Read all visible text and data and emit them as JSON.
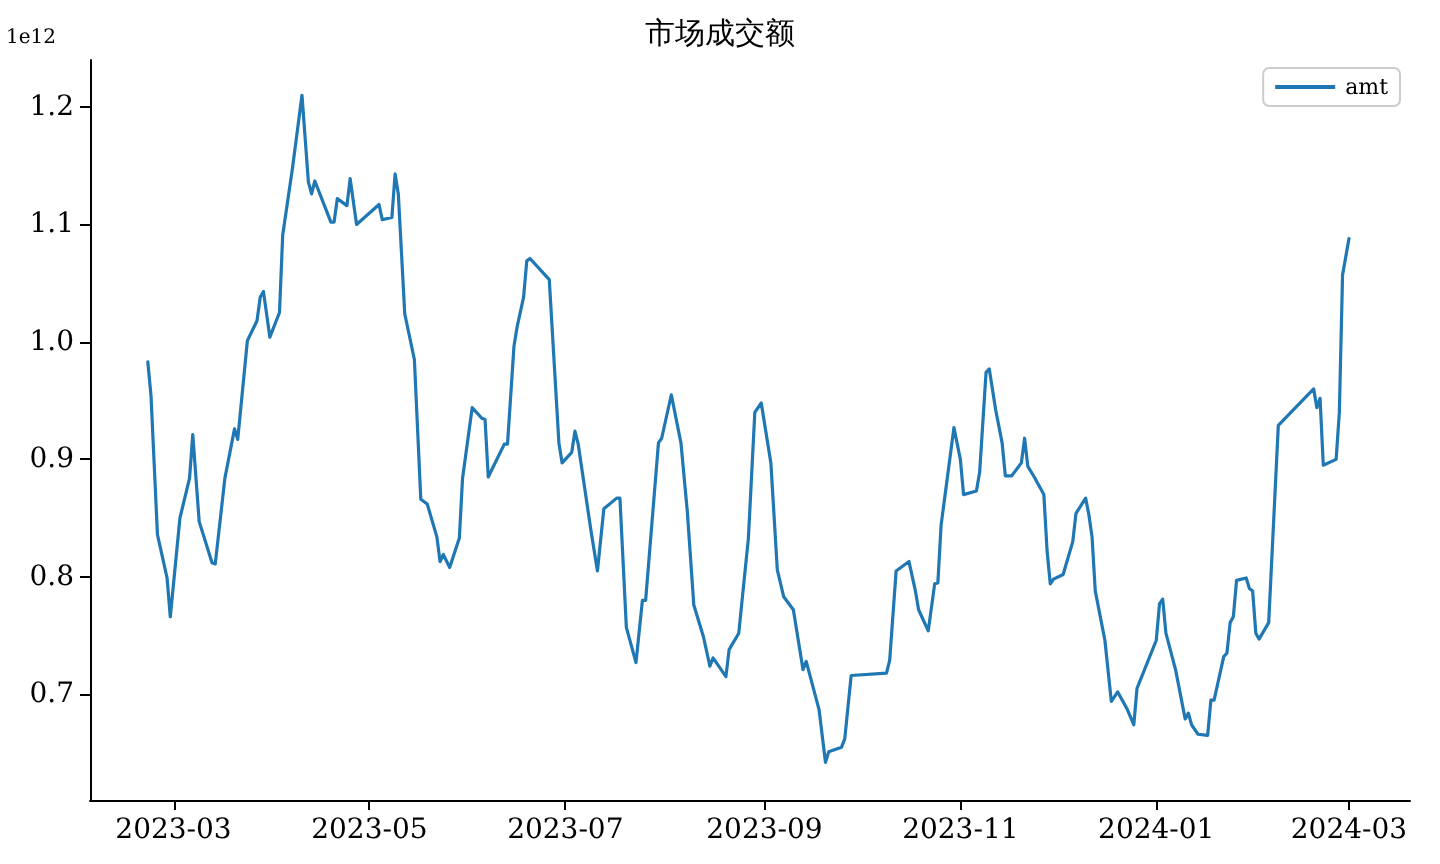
{
  "chart_data": {
    "type": "line",
    "title": "市场成交额",
    "ylabel": "1e12",
    "legend": "top right",
    "grid": false,
    "marker": "none",
    "line_style": "solid",
    "xlim": [
      "2023-02-03",
      "2024-03-20"
    ],
    "xticks": [
      "2023-03",
      "2023-05",
      "2023-07",
      "2023-09",
      "2023-11",
      "2024-01",
      "2024-03"
    ],
    "ylim": [
      0.61,
      1.24
    ],
    "yticks": [
      0.7,
      0.8,
      0.9,
      {
        "value": 1,
        "label": "1.0"
      },
      1.1,
      1.2
    ],
    "series": [
      {
        "name": "amt",
        "color": "#1f77b4",
        "x": [
          "2023-02-21",
          "2023-02-22",
          "2023-02-24",
          "2023-02-27",
          "2023-02-28",
          "2023-03-03",
          "2023-03-06",
          "2023-03-07",
          "2023-03-09",
          "2023-03-13",
          "2023-03-14",
          "2023-03-17",
          "2023-03-20",
          "2023-03-21",
          "2023-03-24",
          "2023-03-27",
          "2023-03-28",
          "2023-03-29",
          "2023-03-31",
          "2023-04-03",
          "2023-04-04",
          "2023-04-07",
          "2023-04-10",
          "2023-04-12",
          "2023-04-13",
          "2023-04-14",
          "2023-04-17",
          "2023-04-19",
          "2023-04-20",
          "2023-04-21",
          "2023-04-24",
          "2023-04-25",
          "2023-04-27",
          "2023-05-04",
          "2023-05-05",
          "2023-05-08",
          "2023-05-09",
          "2023-05-10",
          "2023-05-12",
          "2023-05-15",
          "2023-05-17",
          "2023-05-19",
          "2023-05-22",
          "2023-05-23",
          "2023-05-24",
          "2023-05-26",
          "2023-05-29",
          "2023-05-30",
          "2023-06-02",
          "2023-06-05",
          "2023-06-06",
          "2023-06-07",
          "2023-06-12",
          "2023-06-13",
          "2023-06-15",
          "2023-06-16",
          "2023-06-18",
          "2023-06-19",
          "2023-06-20",
          "2023-06-26",
          "2023-06-29",
          "2023-06-30",
          "2023-07-03",
          "2023-07-04",
          "2023-07-05",
          "2023-07-09",
          "2023-07-11",
          "2023-07-13",
          "2023-07-17",
          "2023-07-18",
          "2023-07-20",
          "2023-07-23",
          "2023-07-25",
          "2023-07-26",
          "2023-07-30",
          "2023-07-31",
          "2023-08-03",
          "2023-08-06",
          "2023-08-08",
          "2023-08-10",
          "2023-08-13",
          "2023-08-15",
          "2023-08-16",
          "2023-08-20",
          "2023-08-21",
          "2023-08-24",
          "2023-08-27",
          "2023-08-29",
          "2023-08-31",
          "2023-09-03",
          "2023-09-05",
          "2023-09-07",
          "2023-09-10",
          "2023-09-13",
          "2023-09-14",
          "2023-09-18",
          "2023-09-20",
          "2023-09-21",
          "2023-09-25",
          "2023-09-26",
          "2023-09-28",
          "2023-10-09",
          "2023-10-10",
          "2023-10-12",
          "2023-10-16",
          "2023-10-18",
          "2023-10-19",
          "2023-10-22",
          "2023-10-24",
          "2023-10-25",
          "2023-10-26",
          "2023-10-30",
          "2023-11-01",
          "2023-11-02",
          "2023-11-06",
          "2023-11-07",
          "2023-11-09",
          "2023-11-10",
          "2023-11-12",
          "2023-11-14",
          "2023-11-15",
          "2023-11-17",
          "2023-11-20",
          "2023-11-21",
          "2023-11-22",
          "2023-11-24",
          "2023-11-27",
          "2023-11-28",
          "2023-11-29",
          "2023-11-30",
          "2023-12-03",
          "2023-12-06",
          "2023-12-07",
          "2023-12-10",
          "2023-12-11",
          "2023-12-12",
          "2023-12-13",
          "2023-12-16",
          "2023-12-18",
          "2023-12-20",
          "2023-12-23",
          "2023-12-25",
          "2023-12-26",
          "2024-01-01",
          "2024-01-02",
          "2024-01-03",
          "2024-01-04",
          "2024-01-07",
          "2024-01-10",
          "2024-01-11",
          "2024-01-12",
          "2024-01-14",
          "2024-01-17",
          "2024-01-18",
          "2024-01-19",
          "2024-01-22",
          "2024-01-23",
          "2024-01-24",
          "2024-01-25",
          "2024-01-26",
          "2024-01-29",
          "2024-01-30",
          "2024-01-31",
          "2024-02-01",
          "2024-02-02",
          "2024-02-05",
          "2024-02-08",
          "2024-02-19",
          "2024-02-20",
          "2024-02-21",
          "2024-02-22",
          "2024-02-26",
          "2024-02-27",
          "2024-02-28",
          "2024-03-01"
        ],
        "values": [
          0.983,
          0.954,
          0.836,
          0.799,
          0.766,
          0.85,
          0.884,
          0.921,
          0.847,
          0.812,
          0.811,
          0.884,
          0.926,
          0.917,
          1.001,
          1.018,
          1.038,
          1.043,
          1.004,
          1.025,
          1.091,
          1.147,
          1.21,
          1.136,
          1.126,
          1.137,
          1.116,
          1.102,
          1.102,
          1.122,
          1.116,
          1.139,
          1.1,
          1.117,
          1.104,
          1.106,
          1.143,
          1.126,
          1.024,
          0.985,
          0.866,
          0.862,
          0.834,
          0.813,
          0.819,
          0.808,
          0.833,
          0.884,
          0.944,
          0.935,
          0.934,
          0.885,
          0.913,
          0.913,
          0.996,
          1.013,
          1.038,
          1.069,
          1.071,
          1.053,
          0.914,
          0.897,
          0.906,
          0.924,
          0.913,
          0.839,
          0.805,
          0.858,
          0.867,
          0.867,
          0.757,
          0.727,
          0.78,
          0.78,
          0.914,
          0.918,
          0.955,
          0.914,
          0.855,
          0.776,
          0.749,
          0.724,
          0.731,
          0.715,
          0.738,
          0.752,
          0.833,
          0.94,
          0.948,
          0.897,
          0.806,
          0.783,
          0.772,
          0.721,
          0.728,
          0.687,
          0.642,
          0.651,
          0.655,
          0.662,
          0.716,
          0.718,
          0.729,
          0.805,
          0.813,
          0.788,
          0.772,
          0.754,
          0.794,
          0.795,
          0.844,
          0.927,
          0.9,
          0.87,
          0.873,
          0.889,
          0.974,
          0.977,
          0.942,
          0.914,
          0.886,
          0.886,
          0.897,
          0.918,
          0.894,
          0.885,
          0.87,
          0.822,
          0.794,
          0.798,
          0.802,
          0.83,
          0.854,
          0.867,
          0.853,
          0.834,
          0.788,
          0.746,
          0.694,
          0.702,
          0.687,
          0.674,
          0.705,
          0.746,
          0.777,
          0.781,
          0.752,
          0.721,
          0.679,
          0.684,
          0.674,
          0.666,
          0.665,
          0.695,
          0.695,
          0.732,
          0.735,
          0.761,
          0.766,
          0.797,
          0.799,
          0.79,
          0.788,
          0.752,
          0.747,
          0.761,
          0.929,
          0.96,
          0.944,
          0.952,
          0.895,
          0.9,
          0.94,
          1.057,
          1.088
        ]
      }
    ]
  }
}
